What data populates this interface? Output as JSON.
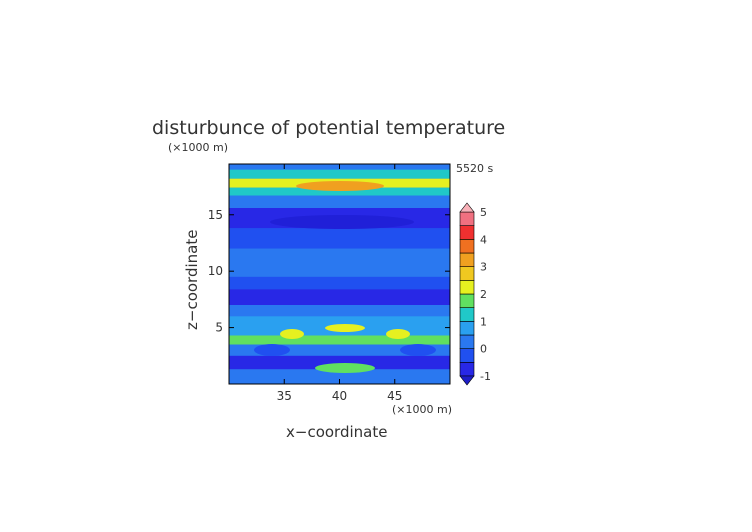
{
  "chart_data": {
    "type": "heatmap",
    "title": "disturbunce of potential temperature",
    "xlabel": "x−coordinate",
    "ylabel": "z−coordinate",
    "x_units": "(×1000 m)",
    "y_units": "(×1000 m)",
    "time_label": "5520 s",
    "xlim": [
      30,
      50
    ],
    "ylim": [
      0,
      19.5
    ],
    "x_ticks": [
      35,
      40,
      45
    ],
    "y_ticks": [
      5,
      10,
      15
    ],
    "colorbar": {
      "levels": [
        -1,
        -0.5,
        0,
        0.5,
        1,
        1.5,
        2,
        2.5,
        3,
        3.5,
        4,
        4.5,
        5
      ],
      "tick_labels": [
        "-1",
        "0",
        "1",
        "2",
        "3",
        "4",
        "5"
      ],
      "tick_values": [
        -1,
        0,
        1,
        2,
        3,
        4,
        5
      ],
      "colors": [
        "#2828e6",
        "#2050f0",
        "#2a78f0",
        "#2aa0f0",
        "#20c8c8",
        "#60e060",
        "#e6f020",
        "#f0c820",
        "#f0a020",
        "#f07020",
        "#f03030",
        "#f07080",
        "#f8b0b8"
      ],
      "extend": "both"
    },
    "bands": [
      {
        "z": [
          19.0,
          19.5
        ],
        "value": 0.3
      },
      {
        "z": [
          18.2,
          19.0
        ],
        "value": 1.3
      },
      {
        "z": [
          17.4,
          18.2
        ],
        "value": 2.3
      },
      {
        "z": [
          16.7,
          17.4
        ],
        "value": 1.2
      },
      {
        "z": [
          15.6,
          16.7
        ],
        "value": 0.0
      },
      {
        "z": [
          13.8,
          15.6
        ],
        "value": -0.8
      },
      {
        "z": [
          12.0,
          13.8
        ],
        "value": -0.2
      },
      {
        "z": [
          9.5,
          12.0
        ],
        "value": 0.1
      },
      {
        "z": [
          8.4,
          9.5
        ],
        "value": -0.3
      },
      {
        "z": [
          7.0,
          8.4
        ],
        "value": -0.9
      },
      {
        "z": [
          6.0,
          7.0
        ],
        "value": 0.2
      },
      {
        "z": [
          4.3,
          6.0
        ],
        "value": 0.9
      },
      {
        "z": [
          3.5,
          4.3
        ],
        "value": 1.6
      },
      {
        "z": [
          2.5,
          3.5
        ],
        "value": 0.0
      },
      {
        "z": [
          1.3,
          2.5
        ],
        "value": -0.9
      },
      {
        "z": [
          0.0,
          1.3
        ],
        "value": 0.3
      }
    ]
  }
}
